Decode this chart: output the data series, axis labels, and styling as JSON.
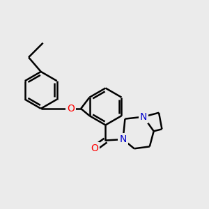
{
  "background_color": "#ebebeb",
  "bond_color": "#000000",
  "oxygen_color": "#ff0000",
  "nitrogen_color": "#0000cc",
  "line_width": 1.8,
  "figsize": [
    3.0,
    3.0
  ],
  "dpi": 100,
  "xlim": [
    0,
    10
  ],
  "ylim": [
    0,
    10
  ]
}
